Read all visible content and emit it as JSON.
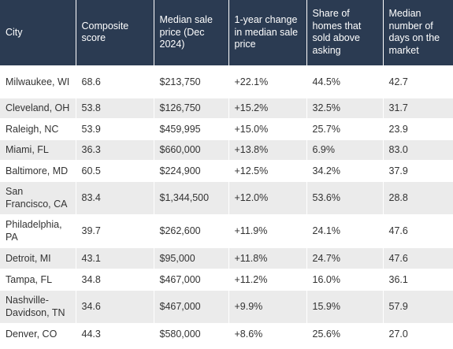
{
  "table": {
    "headers": [
      "City",
      "Composite score",
      "Median sale price (Dec 2024)",
      "1-year change in median sale price",
      "Share of homes that sold above asking",
      "Median number of days on the market"
    ],
    "rows": [
      [
        "Milwaukee, WI",
        "68.6",
        "$213,750",
        "+22.1%",
        "44.5%",
        "42.7"
      ],
      [
        "Cleveland, OH",
        "53.8",
        "$126,750",
        "+15.2%",
        "32.5%",
        "31.7"
      ],
      [
        "Raleigh, NC",
        "53.9",
        "$459,995",
        "+15.0%",
        "25.7%",
        "23.9"
      ],
      [
        "Miami, FL",
        "36.3",
        "$660,000",
        "+13.8%",
        "6.9%",
        "83.0"
      ],
      [
        "Baltimore, MD",
        "60.5",
        "$224,900",
        "+12.5%",
        "34.2%",
        "37.9"
      ],
      [
        "San Francisco, CA",
        "83.4",
        "$1,344,500",
        "+12.0%",
        "53.6%",
        "28.8"
      ],
      [
        "Philadelphia, PA",
        "39.7",
        "$262,600",
        "+11.9%",
        "24.1%",
        "47.6"
      ],
      [
        "Detroit, MI",
        "43.1",
        "$95,000",
        "+11.8%",
        "24.7%",
        "47.6"
      ],
      [
        "Tampa, FL",
        "34.8",
        "$467,000",
        "+11.2%",
        "16.0%",
        "36.1"
      ],
      [
        "Nashville-Davidson, TN",
        "34.6",
        "$467,000",
        "+9.9%",
        "15.9%",
        "57.9"
      ],
      [
        "Denver, CO",
        "44.3",
        "$580,000",
        "+8.6%",
        "25.6%",
        "27.0"
      ]
    ]
  },
  "colors": {
    "header_bg": "#2b3b52",
    "header_text": "#ffffff",
    "row_alt_bg": "#ebebeb",
    "body_text": "#333333"
  }
}
